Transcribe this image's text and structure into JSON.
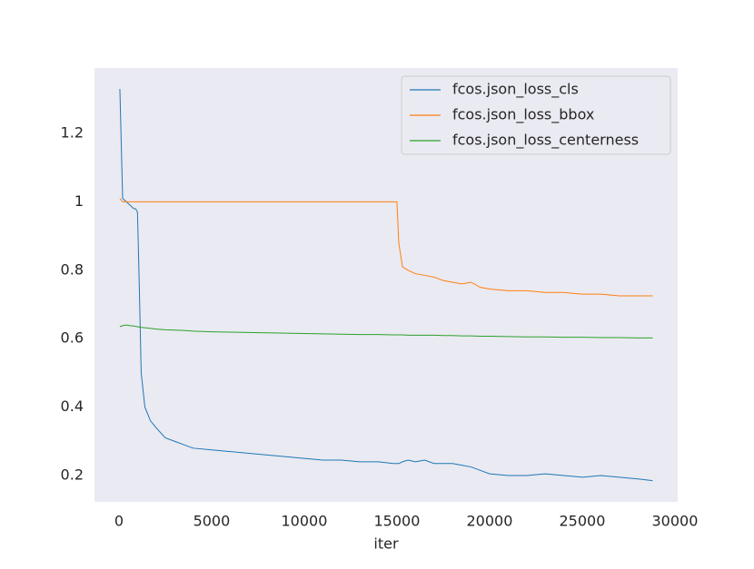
{
  "chart_data": {
    "type": "line",
    "xlabel": "iter",
    "x": [
      50,
      200,
      400,
      600,
      800,
      900,
      1000,
      1100,
      1200,
      1400,
      1700,
      2000,
      2500,
      3000,
      3500,
      4000,
      5000,
      6000,
      7000,
      8000,
      9000,
      10000,
      11000,
      12000,
      13000,
      14000,
      14800,
      15000,
      15100,
      15300,
      15600,
      16000,
      16500,
      17000,
      17500,
      18000,
      18500,
      19000,
      19500,
      20000,
      21000,
      22000,
      23000,
      24000,
      25000,
      26000,
      27000,
      28000,
      28800
    ],
    "series": [
      {
        "name": "fcos.json_loss_cls",
        "color": "#1f77b4",
        "values": [
          1.33,
          1.01,
          1.0,
          0.99,
          0.98,
          0.98,
          0.97,
          0.75,
          0.5,
          0.4,
          0.36,
          0.34,
          0.31,
          0.3,
          0.29,
          0.28,
          0.275,
          0.27,
          0.265,
          0.26,
          0.255,
          0.25,
          0.245,
          0.245,
          0.24,
          0.24,
          0.235,
          0.235,
          0.235,
          0.24,
          0.245,
          0.24,
          0.245,
          0.235,
          0.235,
          0.235,
          0.23,
          0.225,
          0.215,
          0.205,
          0.2,
          0.2,
          0.205,
          0.2,
          0.195,
          0.2,
          0.195,
          0.19,
          0.185
        ]
      },
      {
        "name": "fcos.json_loss_bbox",
        "color": "#ff7f0e",
        "values": [
          1.01,
          1.0,
          1.0,
          1.0,
          1.0,
          1.0,
          1.0,
          1.0,
          1.0,
          1.0,
          1.0,
          1.0,
          1.0,
          1.0,
          1.0,
          1.0,
          1.0,
          1.0,
          1.0,
          1.0,
          1.0,
          1.0,
          1.0,
          1.0,
          1.0,
          1.0,
          1.0,
          1.0,
          0.88,
          0.81,
          0.8,
          0.79,
          0.785,
          0.78,
          0.77,
          0.765,
          0.76,
          0.765,
          0.75,
          0.745,
          0.74,
          0.74,
          0.735,
          0.735,
          0.73,
          0.73,
          0.725,
          0.725,
          0.725
        ]
      },
      {
        "name": "fcos.json_loss_centerness",
        "color": "#2ca02c",
        "values": [
          0.635,
          0.638,
          0.64,
          0.638,
          0.637,
          0.636,
          0.635,
          0.634,
          0.633,
          0.632,
          0.63,
          0.628,
          0.626,
          0.625,
          0.624,
          0.622,
          0.62,
          0.619,
          0.618,
          0.617,
          0.616,
          0.615,
          0.614,
          0.613,
          0.612,
          0.612,
          0.611,
          0.611,
          0.611,
          0.611,
          0.61,
          0.61,
          0.61,
          0.61,
          0.609,
          0.609,
          0.608,
          0.608,
          0.607,
          0.607,
          0.606,
          0.605,
          0.605,
          0.604,
          0.604,
          0.603,
          0.603,
          0.602,
          0.602
        ]
      }
    ],
    "xlim": [
      -1320,
      30150
    ],
    "ylim": [
      0.123,
      1.391
    ],
    "xticks": [
      0,
      5000,
      10000,
      15000,
      20000,
      25000,
      30000
    ],
    "yticks": [
      0.2,
      0.4,
      0.6,
      0.8,
      1.0,
      1.2
    ],
    "grid": false,
    "legend": "upper right",
    "background": "#eaeaf2"
  }
}
